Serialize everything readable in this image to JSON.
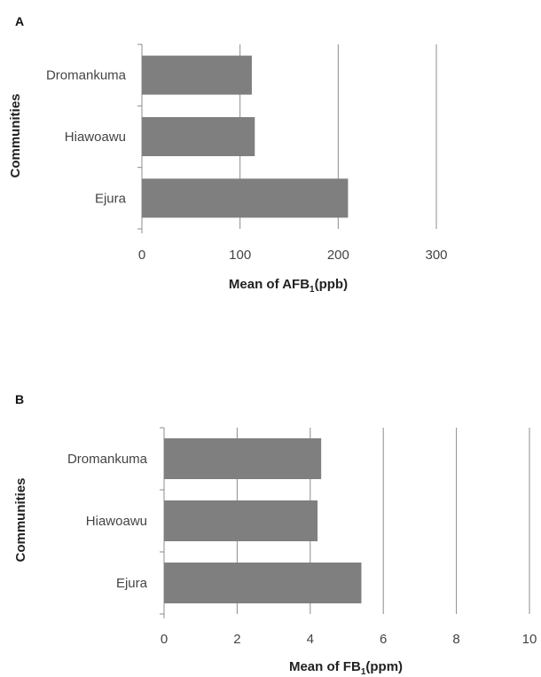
{
  "chart_data": [
    {
      "panel": "A",
      "type": "bar",
      "orientation": "horizontal",
      "categories": [
        "Dromankuma",
        "Hiawoawu",
        "Ejura"
      ],
      "values": [
        112,
        115,
        210
      ],
      "xlabel_main": "Mean of AFB",
      "xlabel_sub": "1",
      "xlabel_tail": "(ppb)",
      "ylabel": "Communities",
      "xlim": [
        0,
        300
      ],
      "xticks": [
        "0",
        "100",
        "200",
        "300"
      ],
      "grid": "vertical",
      "bar_color": "#7f7f7f"
    },
    {
      "panel": "B",
      "type": "bar",
      "orientation": "horizontal",
      "categories": [
        "Dromankuma",
        "Hiawoawu",
        "Ejura"
      ],
      "values": [
        4.3,
        4.2,
        5.4
      ],
      "xlabel_main": "Mean of FB",
      "xlabel_sub": "1",
      "xlabel_tail": "(ppm)",
      "ylabel": "Communities",
      "xlim": [
        0,
        10
      ],
      "xticks": [
        "0",
        "2",
        "4",
        "6",
        "8",
        "10"
      ],
      "grid": "vertical",
      "bar_color": "#7f7f7f"
    }
  ]
}
